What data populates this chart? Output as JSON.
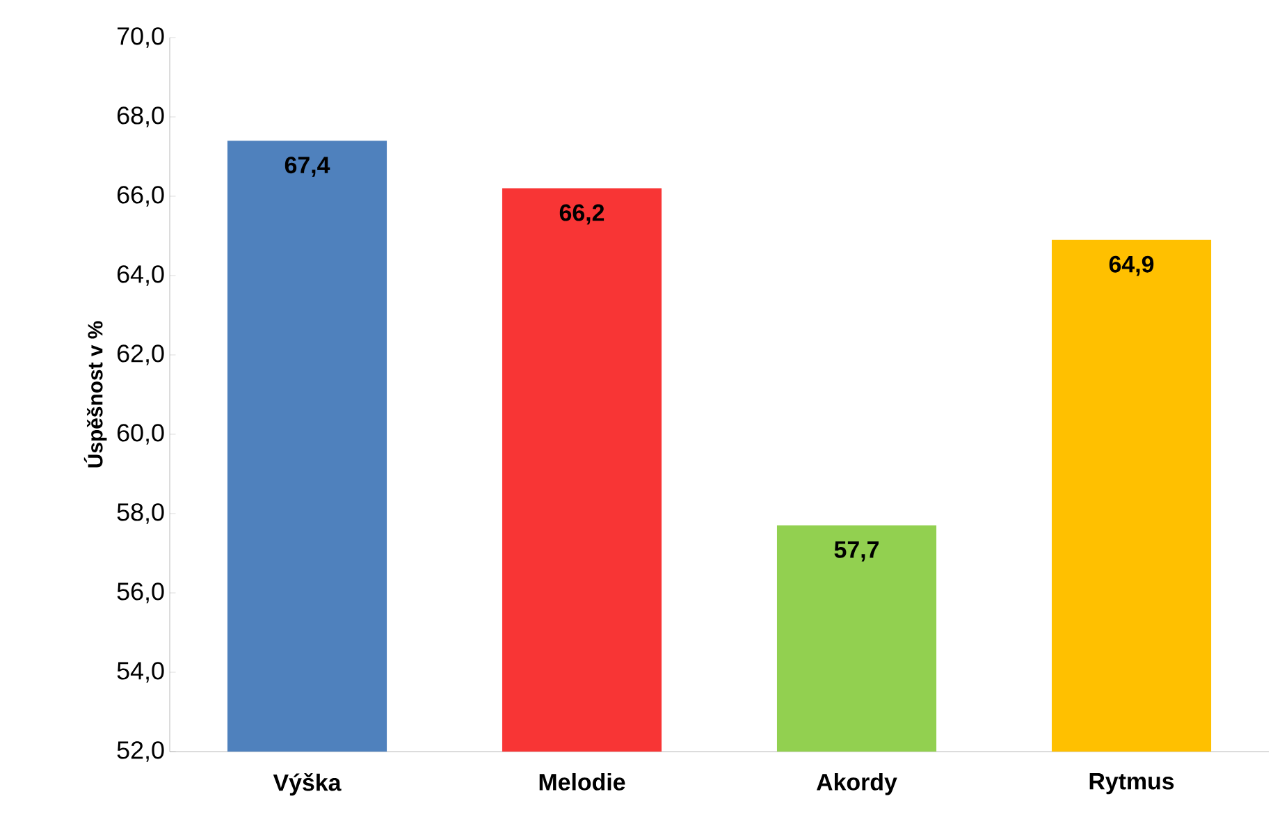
{
  "chart_data": {
    "type": "bar",
    "ylabel": "Úspěšnost v %",
    "categories": [
      "Výška",
      "Melodie",
      "Akordy",
      "Rytmus"
    ],
    "values": [
      67.4,
      66.2,
      57.7,
      64.9
    ],
    "value_labels": [
      "67,4",
      "66,2",
      "57,7",
      "64,9"
    ],
    "colors": [
      "#4f81bd",
      "#f83535",
      "#92d050",
      "#ffc000"
    ],
    "ylim": [
      52,
      70
    ],
    "yticks": [
      {
        "value": 52,
        "label": "52,0"
      },
      {
        "value": 54,
        "label": "54,0"
      },
      {
        "value": 56,
        "label": "56,0"
      },
      {
        "value": 58,
        "label": "58,0"
      },
      {
        "value": 60,
        "label": "60,0"
      },
      {
        "value": 62,
        "label": "62,0"
      },
      {
        "value": 64,
        "label": "64,0"
      },
      {
        "value": 66,
        "label": "66,0"
      },
      {
        "value": 68,
        "label": "68,0"
      },
      {
        "value": 70,
        "label": "70,0"
      }
    ],
    "grid": false
  }
}
